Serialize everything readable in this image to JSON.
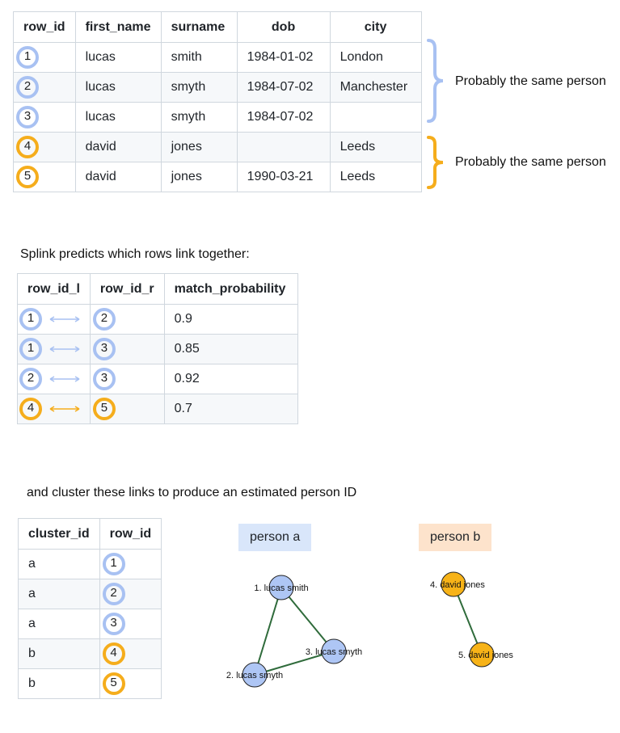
{
  "table1": {
    "headers": [
      "row_id",
      "first_name",
      "surname",
      "dob",
      "city"
    ],
    "rows": [
      {
        "row_id": "1",
        "first_name": "lucas",
        "surname": "smith",
        "dob": "1984-01-02",
        "city": "London",
        "color": "blue"
      },
      {
        "row_id": "2",
        "first_name": "lucas",
        "surname": "smyth",
        "dob": "1984-07-02",
        "city": "Manchester",
        "color": "blue"
      },
      {
        "row_id": "3",
        "first_name": "lucas",
        "surname": "smyth",
        "dob": "1984-07-02",
        "city": "",
        "color": "blue"
      },
      {
        "row_id": "4",
        "first_name": "david",
        "surname": "jones",
        "dob": "",
        "city": "Leeds",
        "color": "orange"
      },
      {
        "row_id": "5",
        "first_name": "david",
        "surname": "jones",
        "dob": "1990-03-21",
        "city": "Leeds",
        "color": "orange"
      }
    ]
  },
  "annotations": {
    "group1": "Probably the same person",
    "group2": "Probably the same person"
  },
  "section2": {
    "caption": "Splink predicts which rows link together:"
  },
  "table2": {
    "headers": [
      "row_id_l",
      "row_id_r",
      "match_probability"
    ],
    "rows": [
      {
        "l": "1",
        "r": "2",
        "p": "0.9",
        "color": "blue"
      },
      {
        "l": "1",
        "r": "3",
        "p": "0.85",
        "color": "blue"
      },
      {
        "l": "2",
        "r": "3",
        "p": "0.92",
        "color": "blue"
      },
      {
        "l": "4",
        "r": "5",
        "p": "0.7",
        "color": "orange"
      }
    ]
  },
  "section3": {
    "caption": "and cluster these links to produce an estimated person ID"
  },
  "table3": {
    "headers": [
      "cluster_id",
      "row_id"
    ],
    "rows": [
      {
        "cluster": "a",
        "row_id": "1",
        "color": "blue"
      },
      {
        "cluster": "a",
        "row_id": "2",
        "color": "blue"
      },
      {
        "cluster": "a",
        "row_id": "3",
        "color": "blue"
      },
      {
        "cluster": "b",
        "row_id": "4",
        "color": "orange"
      },
      {
        "cluster": "b",
        "row_id": "5",
        "color": "orange"
      }
    ]
  },
  "graph": {
    "person_a": "person a",
    "person_b": "person b",
    "nodes": {
      "n1": "1. lucas smith",
      "n2": "2. lucas smyth",
      "n3": "3. lucas smyth",
      "n4": "4. david jones",
      "n5": "5. david jones"
    }
  },
  "colors": {
    "blue": "#a8c1f2",
    "orange": "#f5ad1c",
    "blue_fill": "#aec6f5",
    "orange_fill": "#f7b318",
    "edge": "#2f6b3b",
    "person_a_bg": "#d9e6fa",
    "person_b_bg": "#fde3cc"
  }
}
